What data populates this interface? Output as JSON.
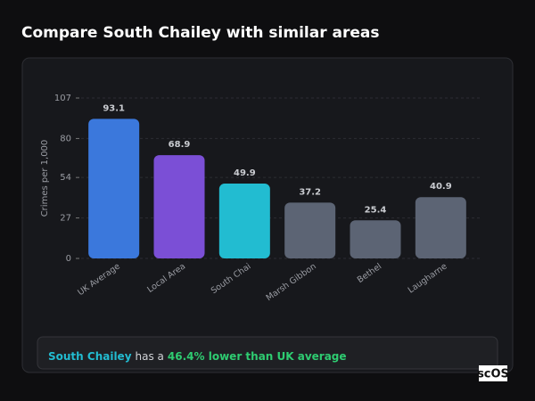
{
  "header": {
    "title": "Compare South Chailey with similar areas"
  },
  "chart_data": {
    "type": "bar",
    "y_label": "Crimes per 1,000",
    "categories": [
      "UK Average",
      "Local Area",
      "South Chai",
      "Marsh Gibbon",
      "Bethel",
      "Laugharne"
    ],
    "values": [
      93.1,
      68.9,
      49.9,
      37.2,
      25.4,
      40.9
    ],
    "colors": [
      "#3b78dc",
      "#7b4fd6",
      "#22bcd1",
      "#5c6474",
      "#5c6474",
      "#5c6474"
    ],
    "ylim": [
      0,
      107
    ],
    "yticks": [
      0,
      27,
      54,
      80,
      107
    ],
    "grid": true
  },
  "note": {
    "area": "South Chailey",
    "middle": "has a",
    "highlight": "46.4% lower than UK average"
  },
  "logo": "scOS"
}
